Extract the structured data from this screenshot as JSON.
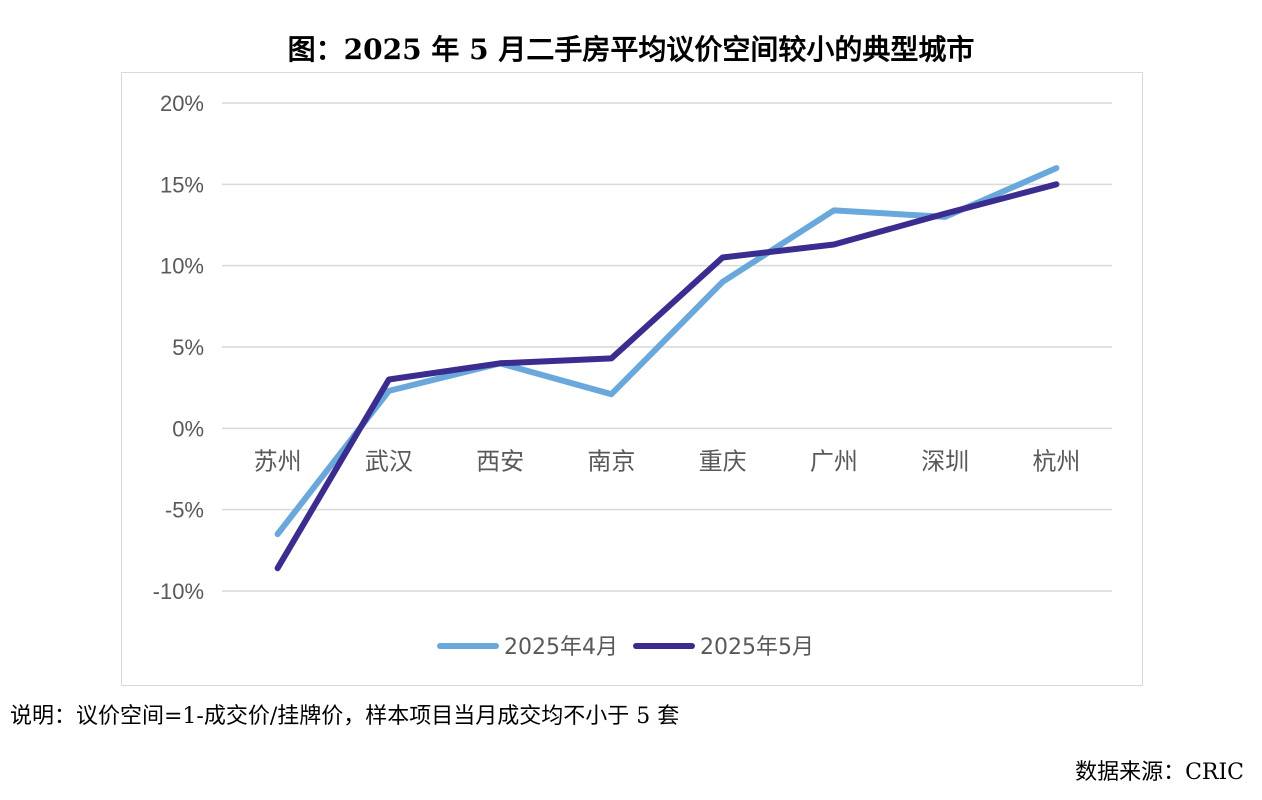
{
  "title": "图：2025 年 5 月二手房平均议价空间较小的典型城市",
  "note": "说明：议价空间=1-成交价/挂牌价，样本项目当月成交均不小于 5 套",
  "source": "数据来源：CRIC",
  "chart_data": {
    "type": "line",
    "categories": [
      "苏州",
      "武汉",
      "西安",
      "南京",
      "重庆",
      "广州",
      "深圳",
      "杭州"
    ],
    "series": [
      {
        "name": "2025年4月",
        "color": "#6aa8dc",
        "values": [
          -6.5,
          2.3,
          4.0,
          2.1,
          9.0,
          13.4,
          13.0,
          16.0
        ]
      },
      {
        "name": "2025年5月",
        "color": "#3a2d8f",
        "values": [
          -8.6,
          3.0,
          4.0,
          4.3,
          10.5,
          11.3,
          13.2,
          15.0
        ]
      }
    ],
    "yticks": [
      "20%",
      "15%",
      "10%",
      "5%",
      "0%",
      "-5%",
      "-10%"
    ],
    "ylim": [
      -10,
      20
    ],
    "grid": true,
    "legend": "bottom"
  }
}
